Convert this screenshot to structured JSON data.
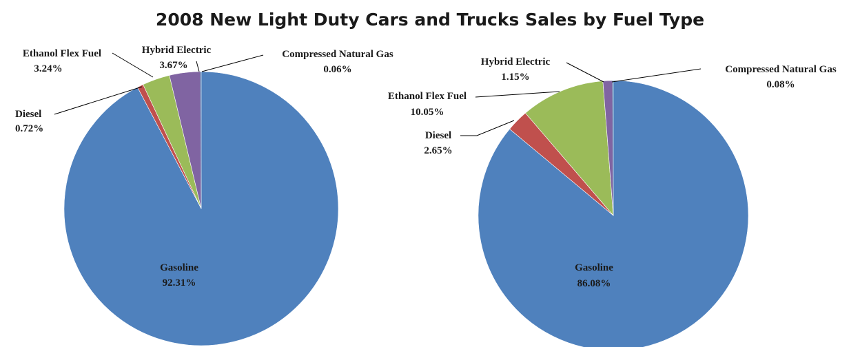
{
  "title": "2008 New Light Duty Cars and Trucks Sales by Fuel Type",
  "chart_data": [
    {
      "type": "pie",
      "slices": [
        {
          "label": "Gasoline",
          "value": 92.31,
          "display": "92.31%",
          "color": "#4F81BD"
        },
        {
          "label": "Diesel",
          "value": 0.72,
          "display": "0.72%",
          "color": "#C0504D"
        },
        {
          "label": "Ethanol Flex Fuel",
          "value": 3.24,
          "display": "3.24%",
          "color": "#9BBB59"
        },
        {
          "label": "Hybrid Electric",
          "value": 3.67,
          "display": "3.67%",
          "color": "#8064A2"
        },
        {
          "label": "Compressed Natural Gas",
          "value": 0.06,
          "display": "0.06%",
          "color": "#4BACC6"
        }
      ]
    },
    {
      "type": "pie",
      "slices": [
        {
          "label": "Gasoline",
          "value": 86.08,
          "display": "86.08%",
          "color": "#4F81BD"
        },
        {
          "label": "Diesel",
          "value": 2.65,
          "display": "2.65%",
          "color": "#C0504D"
        },
        {
          "label": "Ethanol Flex Fuel",
          "value": 10.05,
          "display": "10.05%",
          "color": "#9BBB59"
        },
        {
          "label": "Hybrid Electric",
          "value": 1.15,
          "display": "1.15%",
          "color": "#8064A2"
        },
        {
          "label": "Compressed Natural Gas",
          "value": 0.08,
          "display": "0.08%",
          "color": "#4BACC6"
        }
      ]
    }
  ]
}
